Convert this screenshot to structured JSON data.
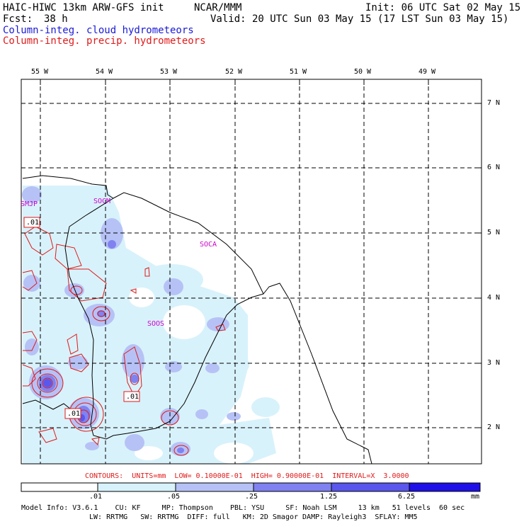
{
  "header": {
    "title": "HAIC-HIWC 13km ARW-GFS init",
    "center": "NCAR/MMM",
    "init": "Init: 06 UTC Sat 02 May 15",
    "fcst_label": "Fcst:",
    "fcst_value": "38 h",
    "valid": "Valid: 20 UTC Sun 03 May 15 (17 LST Sun 03 May 15)",
    "field_cloud": "Column-integ. cloud hydrometeors",
    "field_precip": "Column-integ. precip. hydrometeors"
  },
  "colors": {
    "cloud_title": "#1a1ad6",
    "precip_title": "#e01a1a",
    "station": "#cc00cc",
    "contour": "#e01a1a",
    "shade_levels": [
      "#ffffff",
      "#d8f2fb",
      "#b6c2f6",
      "#7f82f0",
      "#5a57ec",
      "#1f10e8"
    ]
  },
  "map": {
    "lon_labels": [
      "55 W",
      "54 W",
      "53 W",
      "52 W",
      "51 W",
      "50 W",
      "49 W"
    ],
    "lat_labels": [
      "7 N",
      "6 N",
      "5 N",
      "4 N",
      "3 N",
      "2 N"
    ],
    "stations": [
      "SMJP",
      "SOCM",
      "SOCA",
      "SOOS"
    ],
    "contour_labels": [
      ".01",
      ".01",
      ".01"
    ]
  },
  "footer": {
    "contours": "CONTOURS:  UNITS=mm  LOW= 0.10000E-01  HIGH= 0.90000E-01  INTERVAL=X  3.0000",
    "scale_labels": [
      ".01",
      ".05",
      ".25",
      "1.25",
      "6.25"
    ],
    "scale_unit": "mm",
    "model_line1": "Model Info: V3.6.1    CU: KF     MP: Thompson    PBL: YSU     SF: Noah LSM     13 km   51 levels  60 sec",
    "model_line2": "LW: RRTMG   SW: RRTMG  DIFF: full   KM: 2D Smagor DAMP: Rayleigh3  SFLAY: MM5"
  }
}
